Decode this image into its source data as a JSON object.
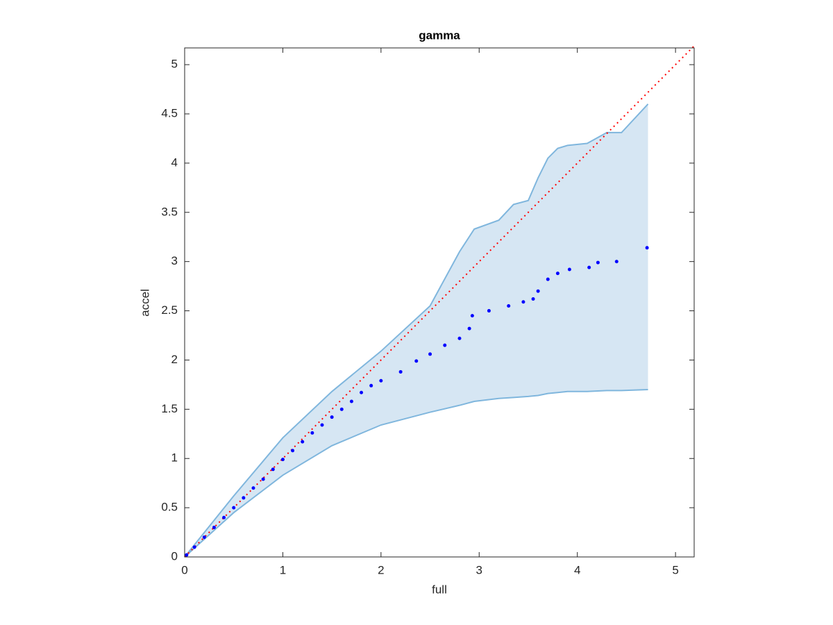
{
  "chart_data": {
    "type": "scatter",
    "title": "gamma",
    "x_label": "full",
    "y_label": "accel",
    "x": [
      0.02,
      0.1,
      0.2,
      0.3,
      0.4,
      0.5,
      0.6,
      0.7,
      0.8,
      0.9,
      1.0,
      1.1,
      1.2,
      1.3,
      1.4,
      1.5,
      1.6,
      1.7,
      1.8,
      1.9,
      2.0,
      2.2,
      2.36,
      2.5,
      2.65,
      2.8,
      2.9,
      2.93,
      3.1,
      3.3,
      3.45,
      3.55,
      3.6,
      3.7,
      3.8,
      3.92,
      4.12,
      4.21,
      4.4,
      4.71
    ],
    "values": [
      0.02,
      0.1,
      0.2,
      0.3,
      0.4,
      0.5,
      0.6,
      0.7,
      0.79,
      0.89,
      0.99,
      1.08,
      1.17,
      1.26,
      1.34,
      1.42,
      1.5,
      1.58,
      1.67,
      1.74,
      1.79,
      1.88,
      1.99,
      2.06,
      2.15,
      2.22,
      2.32,
      2.45,
      2.5,
      2.55,
      2.59,
      2.62,
      2.7,
      2.82,
      2.88,
      2.92,
      2.94,
      2.99,
      3.0,
      3.14
    ],
    "color": "#0000ff",
    "band": {
      "color": "#7fb6dd",
      "fill": "#d6e6f3",
      "x": [
        0,
        0.5,
        1,
        1.5,
        2,
        2.5,
        2.8,
        2.95,
        3.2,
        3.35,
        3.5,
        3.6,
        3.7,
        3.8,
        3.9,
        4.1,
        4.3,
        4.45,
        4.72
      ],
      "upper": [
        0,
        0.62,
        1.21,
        1.68,
        2.09,
        2.55,
        3.1,
        3.33,
        3.42,
        3.58,
        3.62,
        3.85,
        4.05,
        4.15,
        4.18,
        4.2,
        4.31,
        4.31,
        4.6
      ],
      "lower": [
        0,
        0.45,
        0.83,
        1.13,
        1.34,
        1.47,
        1.54,
        1.58,
        1.61,
        1.62,
        1.63,
        1.64,
        1.66,
        1.67,
        1.68,
        1.68,
        1.69,
        1.69,
        1.7
      ]
    },
    "reference": {
      "color": "#ff0000",
      "x": [
        0,
        5.19
      ],
      "values": [
        0,
        5.19
      ]
    },
    "xlim": [
      0,
      5.19
    ],
    "ylim": [
      0,
      5.17
    ],
    "xticks": [
      0,
      1,
      2,
      3,
      4,
      5
    ],
    "yticks": [
      0,
      0.5,
      1,
      1.5,
      2,
      2.5,
      3,
      3.5,
      4,
      4.5,
      5
    ]
  }
}
